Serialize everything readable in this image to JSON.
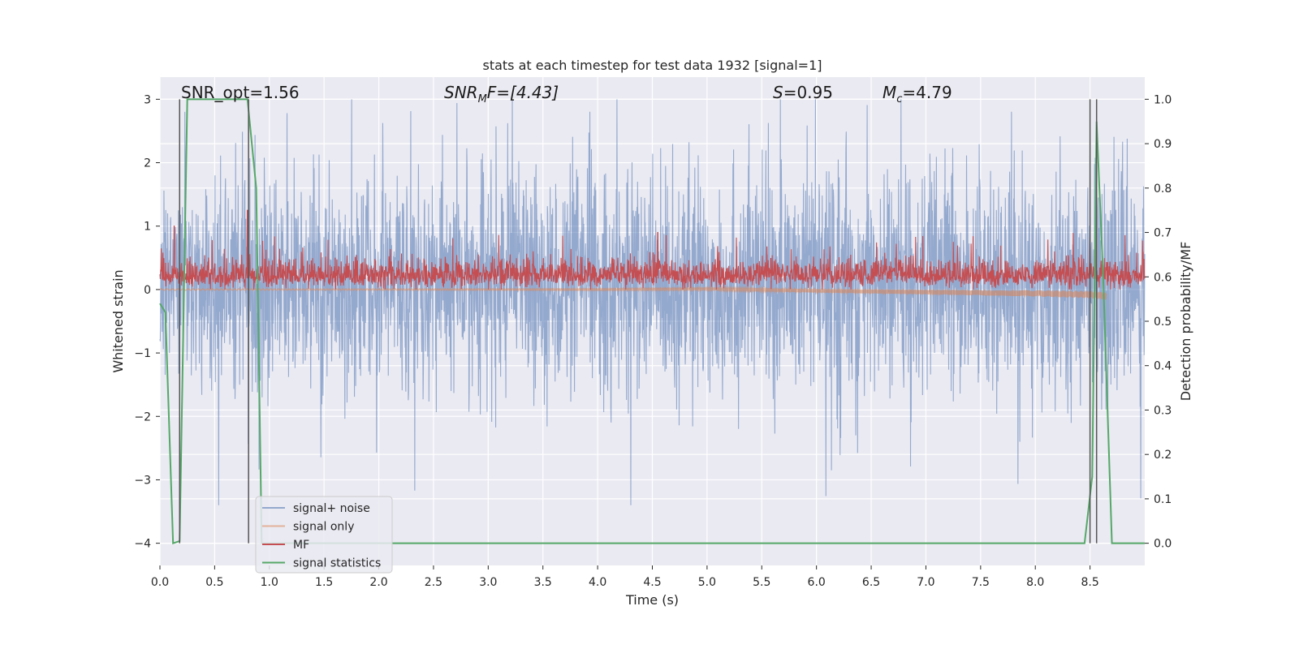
{
  "chart_data": {
    "type": "line",
    "title": "stats at each timestep for test data 1932 [signal=1]",
    "xlabel": "Time (s)",
    "ylabel": "Whitened strain",
    "ylabel_right": "Detection probability/MF",
    "xlim": [
      0,
      9
    ],
    "ylim": [
      -4.35,
      3.35
    ],
    "ylim_right": [
      -0.05,
      1.05
    ],
    "x_ticks": [
      "0.0",
      "0.5",
      "1.0",
      "1.5",
      "2.0",
      "2.5",
      "3.0",
      "3.5",
      "4.0",
      "4.5",
      "5.0",
      "5.5",
      "6.0",
      "6.5",
      "7.0",
      "7.5",
      "8.0",
      "8.5"
    ],
    "x_tick_values": [
      0,
      0.5,
      1,
      1.5,
      2,
      2.5,
      3,
      3.5,
      4,
      4.5,
      5,
      5.5,
      6,
      6.5,
      7,
      7.5,
      8,
      8.5
    ],
    "y_ticks": [
      "3",
      "2",
      "1",
      "0",
      "−1",
      "−2",
      "−3",
      "−4"
    ],
    "y_tick_values": [
      3,
      2,
      1,
      0,
      -1,
      -2,
      -3,
      -4
    ],
    "y_ticks_right": [
      "1.0",
      "0.9",
      "0.8",
      "0.7",
      "0.6",
      "0.5",
      "0.4",
      "0.3",
      "0.2",
      "0.1",
      "0.0"
    ],
    "y_tick_values_right": [
      1.0,
      0.9,
      0.8,
      0.7,
      0.6,
      0.5,
      0.4,
      0.3,
      0.2,
      0.1,
      0.0
    ],
    "grid": true,
    "legend_position": "lower-left",
    "annotations": {
      "snr_opt": "SNR_opt=1.56",
      "snr_mf_base": "SNR",
      "snr_mf_sub": "M",
      "snr_mf_rest": "F=[4.43]",
      "s_var": "S",
      "s_val": "=0.95",
      "mc_var": "M",
      "mc_sub": "c",
      "mc_val": "=4.79"
    },
    "series": [
      {
        "name": "signal+ noise",
        "color": "#4c72b0",
        "opacity": 0.55,
        "axis": "left",
        "style": "noise",
        "x_range": [
          0,
          9
        ],
        "amplitude_envelope": [
          -3.4,
          3.0
        ],
        "typical_range": [
          -1.9,
          2.4
        ]
      },
      {
        "name": "signal only",
        "color": "#dd8452",
        "opacity": 0.55,
        "axis": "left",
        "x": [
          0.0,
          1.0,
          2.0,
          3.0,
          4.0,
          5.0,
          6.0,
          7.0,
          8.0,
          8.5,
          8.65
        ],
        "y": [
          0.0,
          0.0,
          0.0,
          0.0,
          0.0,
          0.01,
          -0.02,
          -0.04,
          -0.06,
          -0.08,
          -0.1
        ]
      },
      {
        "name": "MF",
        "color": "#c44e52",
        "opacity": 1.0,
        "axis": "left",
        "style": "noise",
        "x_range": [
          0,
          9
        ],
        "typical_range": [
          0.0,
          0.6
        ],
        "peaks": [
          [
            0.13,
            1.0
          ],
          [
            0.8,
            1.25
          ],
          [
            4.55,
            0.9
          ],
          [
            8.55,
            0.85
          ]
        ]
      },
      {
        "name": "signal statistics",
        "color": "#55a868",
        "opacity": 1.0,
        "axis": "right",
        "x": [
          0.0,
          0.05,
          0.12,
          0.18,
          0.25,
          0.8,
          0.88,
          0.93,
          1.0,
          8.45,
          8.52,
          8.56,
          8.62,
          8.7,
          9.0
        ],
        "y": [
          0.54,
          0.52,
          0.0,
          0.005,
          1.0,
          1.0,
          0.8,
          0.0,
          0.0,
          0.0,
          0.15,
          0.95,
          0.6,
          0.0,
          0.0
        ]
      }
    ],
    "vertical_markers": {
      "color": "#555555",
      "x": [
        0.18,
        0.81,
        8.5,
        8.56
      ],
      "ymax_right": 1.0
    }
  }
}
